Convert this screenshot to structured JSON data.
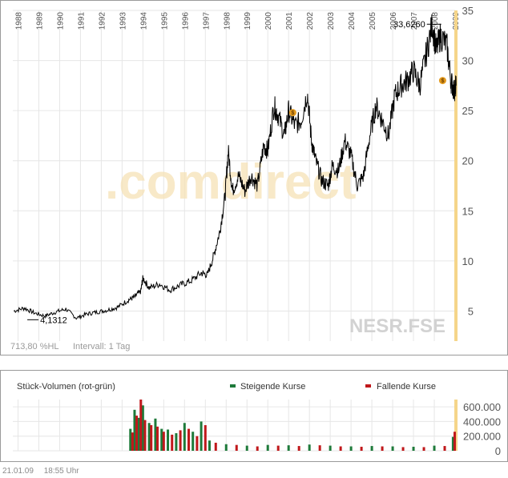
{
  "footer": {
    "date": "21.01.09",
    "time": "18:55 Uhr"
  },
  "price_chart": {
    "watermark_brand": ".comdirect",
    "watermark_symbol": "NESR.FSE",
    "info_percent": "713,80 %HL",
    "info_interval": "Intervall: 1 Tag",
    "max_label": "33,6260",
    "min_label": "4,1312",
    "dividend_marker": "$"
  },
  "volume_chart": {
    "title": "Stück-Volumen (rot-grün)",
    "legend_up": "Steigende Kurse",
    "legend_down": "Fallende Kurse"
  },
  "colors": {
    "price_line": "#000000",
    "grid": "#e6e6e6",
    "axis_text": "#555555",
    "rising": "#1e7a3a",
    "falling": "#c0181b",
    "current_marker": "#f5d58a",
    "dividend": "#e39a1d"
  },
  "chart_data": [
    {
      "type": "line",
      "title": "NESR.FSE",
      "x_ticks": [
        "1988",
        "1989",
        "1990",
        "1991",
        "1992",
        "1993",
        "1994",
        "1995",
        "1996",
        "1997",
        "1998",
        "1999",
        "2000",
        "2001",
        "2002",
        "2003",
        "2004",
        "2005",
        "2006",
        "2007",
        "2008",
        "2009"
      ],
      "y_ticks": [
        "5",
        "10",
        "15",
        "20",
        "25",
        "30",
        "35"
      ],
      "ylim": [
        2,
        35
      ],
      "xlim": [
        1987.75,
        2009.0
      ],
      "series": [
        {
          "x": [
            1987.8,
            1988.3,
            1988.8,
            1989.3,
            1989.8,
            1990.3,
            1990.8,
            1991.3,
            1991.8,
            1992.3,
            1992.8,
            1993.3,
            1993.6,
            1993.9,
            1994.0,
            1994.3,
            1994.8,
            1995.3,
            1995.8,
            1996.3,
            1996.8,
            1997.1,
            1997.4,
            1997.7,
            1997.95,
            1998.1,
            1998.3,
            1998.6,
            1998.9,
            1999.2,
            1999.5,
            1999.8,
            2000.0,
            2000.3,
            2000.5,
            2000.8,
            2001.0,
            2001.3,
            2001.6,
            2001.9,
            2002.1,
            2002.3,
            2002.6,
            2002.9,
            2003.1,
            2003.4,
            2003.7,
            2004.0,
            2004.3,
            2004.6,
            2004.9,
            2005.2,
            2005.5,
            2005.8,
            2006.1,
            2006.4,
            2006.7,
            2007.0,
            2007.3,
            2007.6,
            2007.9,
            2008.1,
            2008.3,
            2008.6,
            2008.8,
            2008.95,
            2009.05
          ],
          "y": [
            5.0,
            5.3,
            4.8,
            4.5,
            4.9,
            5.2,
            4.3,
            4.7,
            4.9,
            5.1,
            5.4,
            6.1,
            6.4,
            7.0,
            8.3,
            7.3,
            7.7,
            7.1,
            7.6,
            8.0,
            8.8,
            8.6,
            10.5,
            13.0,
            16.5,
            21.0,
            17.0,
            18.5,
            17.0,
            18.5,
            17.5,
            21.5,
            21.0,
            25.5,
            24.5,
            22.5,
            25.0,
            23.5,
            24.0,
            26.8,
            22.0,
            20.0,
            18.0,
            17.5,
            19.5,
            19.0,
            22.0,
            20.5,
            17.5,
            18.5,
            22.5,
            25.5,
            24.0,
            22.5,
            26.5,
            27.5,
            28.0,
            29.0,
            27.5,
            30.5,
            33.6,
            31.0,
            32.5,
            31.5,
            28.0,
            27.0,
            27.5
          ]
        }
      ],
      "max_value": 33.626,
      "min_value": 4.1312
    },
    {
      "type": "bar",
      "title": "Stück-Volumen (rot-grün)",
      "y_ticks": [
        "0",
        "200.000",
        "400.000",
        "600.000"
      ],
      "ylim": [
        0,
        700000
      ],
      "xlim": [
        1987.75,
        2009.0
      ],
      "series": [
        {
          "name": "Steigende Kurse",
          "x": [
            1993.4,
            1993.6,
            1993.8,
            1994.0,
            1994.3,
            1994.6,
            1994.9,
            1995.2,
            1995.6,
            1996.0,
            1996.4,
            1996.8,
            1997.2,
            1998.0,
            1999.0,
            2000.0,
            2001.0,
            2002.0,
            2003.0,
            2004.0,
            2005.0,
            2006.0,
            2007.0,
            2008.0,
            2008.9
          ],
          "values": [
            300000,
            560000,
            450000,
            620000,
            380000,
            440000,
            300000,
            290000,
            240000,
            380000,
            260000,
            400000,
            140000,
            90000,
            70000,
            80000,
            75000,
            85000,
            70000,
            60000,
            65000,
            60000,
            55000,
            70000,
            190000
          ]
        },
        {
          "name": "Fallende Kurse",
          "x": [
            1993.5,
            1993.7,
            1993.9,
            1994.1,
            1994.4,
            1994.7,
            1995.0,
            1995.4,
            1995.8,
            1996.2,
            1996.6,
            1997.0,
            1997.5,
            1998.5,
            1999.5,
            2000.5,
            2001.5,
            2002.5,
            2003.5,
            2004.5,
            2005.5,
            2006.5,
            2007.5,
            2008.5,
            2008.98
          ],
          "values": [
            250000,
            480000,
            700000,
            420000,
            350000,
            330000,
            260000,
            220000,
            280000,
            300000,
            200000,
            350000,
            110000,
            80000,
            60000,
            70000,
            65000,
            75000,
            60000,
            55000,
            60000,
            50000,
            50000,
            65000,
            260000
          ]
        }
      ]
    }
  ]
}
